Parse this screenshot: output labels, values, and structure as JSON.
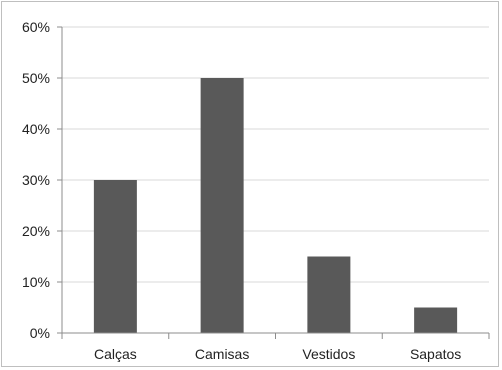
{
  "chart_data": {
    "type": "bar",
    "title": "",
    "xlabel": "",
    "ylabel": "",
    "categories": [
      "Calças",
      "Camisas",
      "Vestidos",
      "Sapatos"
    ],
    "values": [
      30,
      50,
      15,
      5
    ],
    "ylim": [
      0,
      60
    ],
    "yticks": [
      "0%",
      "10%",
      "20%",
      "30%",
      "40%",
      "50%",
      "60%"
    ],
    "grid": true,
    "legend": "none",
    "colors": {
      "bar": "#595959",
      "grid": "#d9d9d9",
      "axis": "#8c8c8c"
    }
  }
}
